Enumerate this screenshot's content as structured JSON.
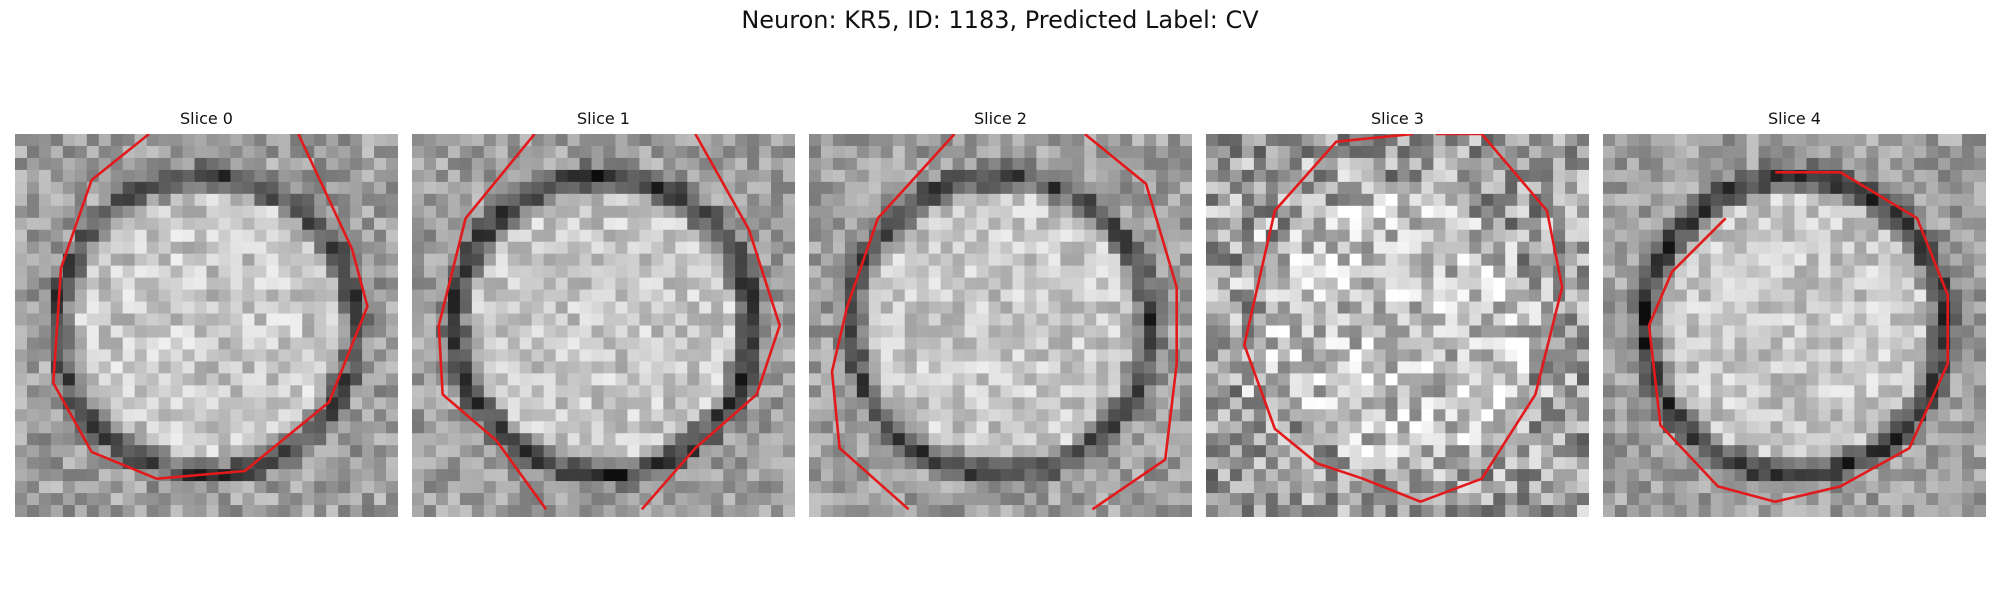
{
  "figure": {
    "title": "Neuron: KR5, ID: 1183, Predicted Label: CV",
    "contour_color": "#e31a1c",
    "colormap": "gray",
    "slices": [
      {
        "label": "Slice 0",
        "seed": 11,
        "darkness": 0.55,
        "noise": 0.16,
        "contour": [
          [
            0.35,
            0.0
          ],
          [
            0.2,
            0.12
          ],
          [
            0.12,
            0.35
          ],
          [
            0.1,
            0.65
          ],
          [
            0.2,
            0.83
          ],
          [
            0.37,
            0.9
          ],
          [
            0.6,
            0.88
          ],
          [
            0.82,
            0.7
          ],
          [
            0.92,
            0.45
          ],
          [
            0.88,
            0.3
          ],
          [
            0.74,
            0.0
          ]
        ]
      },
      {
        "label": "Slice 1",
        "seed": 23,
        "darkness": 0.6,
        "noise": 0.15,
        "contour": [
          [
            0.32,
            0.0
          ],
          [
            0.14,
            0.22
          ],
          [
            0.07,
            0.5
          ],
          [
            0.08,
            0.68
          ],
          [
            0.22,
            0.8
          ],
          [
            0.35,
            0.98
          ]
        ],
        "contour2": [
          [
            0.74,
            0.0
          ],
          [
            0.88,
            0.25
          ],
          [
            0.96,
            0.5
          ],
          [
            0.9,
            0.68
          ],
          [
            0.74,
            0.82
          ],
          [
            0.6,
            0.98
          ]
        ]
      },
      {
        "label": "Slice 2",
        "seed": 37,
        "darkness": 0.55,
        "noise": 0.15,
        "contour": [
          [
            0.38,
            0.0
          ],
          [
            0.18,
            0.22
          ],
          [
            0.1,
            0.45
          ],
          [
            0.06,
            0.62
          ],
          [
            0.08,
            0.82
          ],
          [
            0.26,
            0.98
          ]
        ],
        "contour2": [
          [
            0.72,
            0.0
          ],
          [
            0.88,
            0.13
          ],
          [
            0.96,
            0.4
          ],
          [
            0.96,
            0.6
          ],
          [
            0.93,
            0.85
          ],
          [
            0.74,
            0.98
          ]
        ]
      },
      {
        "label": "Slice 3",
        "seed": 53,
        "darkness": 0.2,
        "noise": 0.28,
        "contour": [
          [
            0.54,
            0.0
          ],
          [
            0.34,
            0.02
          ],
          [
            0.18,
            0.2
          ],
          [
            0.1,
            0.55
          ],
          [
            0.18,
            0.77
          ],
          [
            0.29,
            0.86
          ],
          [
            0.41,
            0.9
          ],
          [
            0.56,
            0.96
          ],
          [
            0.72,
            0.9
          ],
          [
            0.86,
            0.68
          ],
          [
            0.93,
            0.4
          ],
          [
            0.89,
            0.2
          ],
          [
            0.72,
            0.0
          ],
          [
            0.6,
            0.0
          ]
        ]
      },
      {
        "label": "Slice 4",
        "seed": 71,
        "darkness": 0.62,
        "noise": 0.15,
        "contour": [
          [
            0.45,
            0.1
          ],
          [
            0.62,
            0.1
          ],
          [
            0.82,
            0.22
          ],
          [
            0.9,
            0.42
          ],
          [
            0.9,
            0.6
          ],
          [
            0.8,
            0.82
          ],
          [
            0.62,
            0.92
          ],
          [
            0.45,
            0.96
          ],
          [
            0.3,
            0.92
          ],
          [
            0.15,
            0.76
          ],
          [
            0.12,
            0.5
          ],
          [
            0.18,
            0.36
          ],
          [
            0.32,
            0.22
          ]
        ]
      }
    ]
  }
}
